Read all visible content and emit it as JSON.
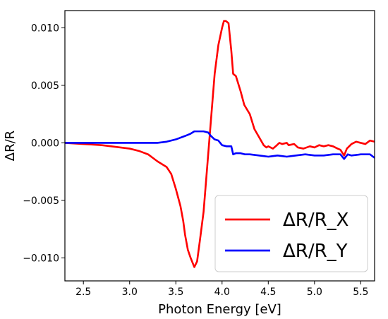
{
  "chart_data": {
    "type": "line",
    "xlabel": "Photon Energy [eV]",
    "ylabel": "ΔR/R",
    "xlim": [
      2.3,
      5.65
    ],
    "ylim": [
      -0.012,
      0.0115
    ],
    "x_ticks": [
      2.5,
      3.0,
      3.5,
      4.0,
      4.5,
      5.0,
      5.5
    ],
    "x_tick_labels": [
      "2.5",
      "3.0",
      "3.5",
      "4.0",
      "4.5",
      "5.0",
      "5.5"
    ],
    "y_ticks": [
      -0.01,
      -0.005,
      0.0,
      0.005,
      0.01
    ],
    "y_tick_labels": [
      "−0.010",
      "−0.005",
      "0.000",
      "0.005",
      "0.010"
    ],
    "grid": false,
    "legend_placement": "bottom-right",
    "series": [
      {
        "name": "ΔR/R_X",
        "color": "#ff0000",
        "x": [
          2.3,
          2.5,
          2.7,
          2.9,
          3.0,
          3.1,
          3.2,
          3.3,
          3.4,
          3.45,
          3.5,
          3.55,
          3.58,
          3.6,
          3.63,
          3.66,
          3.7,
          3.73,
          3.76,
          3.8,
          3.83,
          3.86,
          3.89,
          3.92,
          3.96,
          4.0,
          4.02,
          4.04,
          4.07,
          4.1,
          4.12,
          4.15,
          4.2,
          4.24,
          4.3,
          4.35,
          4.4,
          4.45,
          4.48,
          4.5,
          4.55,
          4.58,
          4.62,
          4.65,
          4.7,
          4.72,
          4.78,
          4.82,
          4.88,
          4.95,
          5.0,
          5.05,
          5.1,
          5.15,
          5.2,
          5.25,
          5.28,
          5.32,
          5.35,
          5.4,
          5.45,
          5.5,
          5.55,
          5.6,
          5.65
        ],
        "y": [
          0.0,
          -0.0001,
          -0.0002,
          -0.0004,
          -0.0005,
          -0.0007,
          -0.001,
          -0.0016,
          -0.0021,
          -0.0027,
          -0.004,
          -0.0055,
          -0.0068,
          -0.008,
          -0.0093,
          -0.01,
          -0.0108,
          -0.0103,
          -0.0085,
          -0.006,
          -0.003,
          0.0,
          0.003,
          0.006,
          0.0085,
          0.01,
          0.0106,
          0.0106,
          0.0104,
          0.008,
          0.006,
          0.0058,
          0.0045,
          0.0033,
          0.0025,
          0.0012,
          0.0005,
          -0.0002,
          -0.0004,
          -0.0003,
          -0.0005,
          -0.0003,
          0.0,
          -0.0001,
          0.0,
          -0.0002,
          -0.0001,
          -0.0004,
          -0.0005,
          -0.0003,
          -0.0004,
          -0.0002,
          -0.0003,
          -0.0002,
          -0.0003,
          -0.0005,
          -0.0006,
          -0.0011,
          -0.0005,
          -0.0001,
          0.0001,
          0.0,
          -0.0001,
          0.0002,
          0.0001
        ]
      },
      {
        "name": "ΔR/R_Y",
        "color": "#0000ff",
        "x": [
          2.3,
          2.5,
          2.7,
          2.9,
          3.1,
          3.3,
          3.4,
          3.5,
          3.6,
          3.66,
          3.7,
          3.75,
          3.8,
          3.85,
          3.88,
          3.92,
          3.96,
          4.0,
          4.05,
          4.1,
          4.12,
          4.15,
          4.2,
          4.25,
          4.3,
          4.4,
          4.5,
          4.6,
          4.7,
          4.8,
          4.9,
          5.0,
          5.1,
          5.2,
          5.28,
          5.32,
          5.36,
          5.4,
          5.5,
          5.6,
          5.65
        ],
        "y": [
          0.0,
          0.0,
          0.0,
          0.0,
          0.0,
          0.0,
          0.0001,
          0.0003,
          0.0006,
          0.0008,
          0.001,
          0.001,
          0.001,
          0.0009,
          0.0006,
          0.0003,
          0.0002,
          -0.0002,
          -0.0003,
          -0.0003,
          -0.001,
          -0.0009,
          -0.0009,
          -0.001,
          -0.001,
          -0.0011,
          -0.0012,
          -0.0011,
          -0.0012,
          -0.0011,
          -0.001,
          -0.0011,
          -0.0011,
          -0.001,
          -0.001,
          -0.0014,
          -0.001,
          -0.0011,
          -0.001,
          -0.001,
          -0.0013
        ]
      }
    ]
  }
}
